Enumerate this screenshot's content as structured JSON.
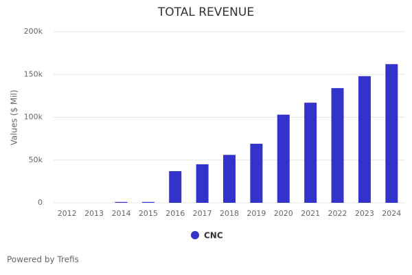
{
  "chart_data": {
    "type": "bar",
    "title": "TOTAL REVENUE",
    "y_label": "Values ($ Mil)",
    "categories": [
      "2012",
      "2013",
      "2014",
      "2015",
      "2016",
      "2017",
      "2018",
      "2019",
      "2020",
      "2021",
      "2022",
      "2023",
      "2024"
    ],
    "series": [
      {
        "name": "CNC",
        "color": "#3333cc",
        "values": [
          0,
          0,
          1000,
          1000,
          37000,
          45000,
          56000,
          69000,
          103000,
          117000,
          134000,
          148000,
          162000
        ]
      }
    ],
    "ylim": [
      0,
      200000
    ],
    "yticks": [
      0,
      {
        "value": 50000,
        "label": "50k"
      },
      {
        "value": 100000,
        "label": "100k"
      },
      {
        "value": 150000,
        "label": "150k"
      },
      {
        "value": 200000,
        "label": "200k"
      }
    ],
    "grid": true,
    "footer": "Powered by Trefis"
  }
}
